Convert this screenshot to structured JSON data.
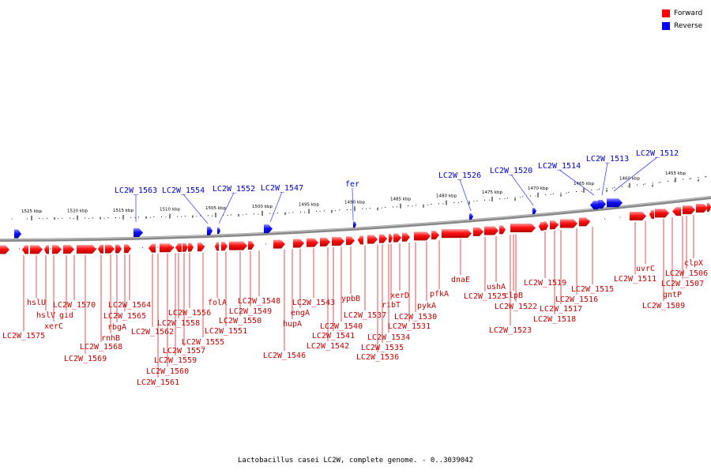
{
  "title": "Lactobacillus casei LC2W, complete genome. - 0..3039042",
  "legend": {
    "forward": {
      "label": "Forward",
      "color": "#ff0000"
    },
    "reverse": {
      "label": "Reverse",
      "color": "#0000ff"
    }
  },
  "scale_unit": "kbp",
  "ticks": [
    1525,
    1520,
    1515,
    1510,
    1505,
    1500,
    1495,
    1490,
    1485,
    1480,
    1475,
    1470,
    1465,
    1460,
    1455
  ],
  "tick_labels": [
    "1525 kbp",
    "1520 kbp",
    "1515 kbp",
    "1510 kbp",
    "1505 kbp",
    "1500 kbp",
    "1495 kbp",
    "1490 kbp",
    "1485 kbp",
    "1480 kbp",
    "1475 kbp",
    "1470 kbp",
    "1465 kbp",
    "1460 kbp",
    "1455 kbp"
  ],
  "reverse_labels": [
    "LC2W_1563",
    "LC2W_1554",
    "LC2W_1552",
    "LC2W_1547",
    "fer",
    "LC2W_1526",
    "LC2W_1520",
    "LC2W_1514",
    "LC2W_1513",
    "LC2W_1512"
  ],
  "forward_labels": [
    "LC2W_1575",
    "hslU",
    "hslV",
    "xerC",
    "gid",
    "LC2W_1570",
    "LC2W_1569",
    "LC2W_1568",
    "rnhB",
    "rbgA",
    "LC2W_1565",
    "LC2W_1564",
    "LC2W_1562",
    "LC2W_1561",
    "LC2W_1560",
    "LC2W_1559",
    "LC2W_1558",
    "LC2W_1557",
    "LC2W_1556",
    "LC2W_1555",
    "folA",
    "LC2W_1551",
    "LC2W_1550",
    "LC2W_1549",
    "LC2W_1548",
    "LC2W_1546",
    "hupA",
    "engA",
    "LC2W_1543",
    "LC2W_1542",
    "LC2W_1541",
    "LC2W_1540",
    "ypbB",
    "LC2W_1537",
    "LC2W_1536",
    "LC2W_1535",
    "LC2W_1534",
    "ribT",
    "LC2W_1531",
    "xerD",
    "LC2W_1530",
    "pykA",
    "pfkA",
    "dnaE",
    "LC2W_1525",
    "ushA",
    "LC2W_1523",
    "clpB",
    "LC2W_1522",
    "LC2W_1519",
    "LC2W_1518",
    "LC2W_1517",
    "LC2W_1516",
    "LC2W_1515",
    "LC2W_1511",
    "uvrC",
    "LC2W_1509",
    "gntP",
    "LC2W_1507",
    "LC2W_1506",
    "clpX"
  ]
}
